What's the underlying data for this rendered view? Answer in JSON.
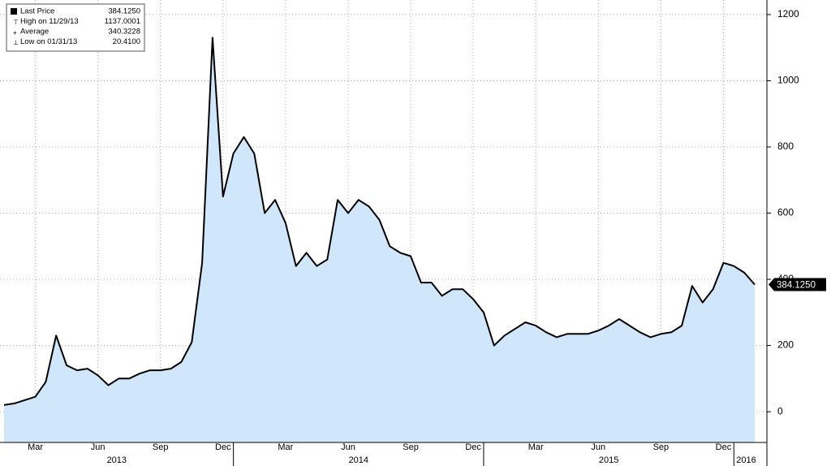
{
  "chart_data": {
    "type": "area",
    "stats": [
      {
        "label": "Last Price",
        "value": "384.1250"
      },
      {
        "label": "High on 11/29/13",
        "value": "1137.0001"
      },
      {
        "label": "Average",
        "value": "340.3228"
      },
      {
        "label": "Low on 01/31/13",
        "value": "20.4100"
      }
    ],
    "categories": [
      null,
      null,
      null,
      "Mar",
      null,
      null,
      null,
      null,
      null,
      "Jun",
      null,
      null,
      null,
      null,
      null,
      "Sep",
      null,
      null,
      null,
      null,
      null,
      "Dec",
      null,
      null,
      null,
      null,
      null,
      "Mar",
      null,
      null,
      null,
      null,
      null,
      "Jun",
      null,
      null,
      null,
      null,
      null,
      "Sep",
      null,
      null,
      null,
      null,
      null,
      "Dec",
      null,
      null,
      null,
      null,
      null,
      "Mar",
      null,
      null,
      null,
      null,
      null,
      "Jun",
      null,
      null,
      null,
      null,
      null,
      "Sep",
      null,
      null,
      null,
      null,
      null,
      "Dec",
      null,
      null,
      null
    ],
    "years": [
      "2013",
      "2014",
      "2015",
      "2016"
    ],
    "series": [
      {
        "name": "Last Price",
        "color": "#000000",
        "fill": "#cfe6fb",
        "values": [
          20,
          25,
          35,
          45,
          90,
          230,
          140,
          125,
          130,
          110,
          80,
          100,
          100,
          115,
          125,
          125,
          130,
          150,
          210,
          450,
          1130,
          650,
          780,
          830,
          780,
          600,
          640,
          570,
          440,
          480,
          440,
          460,
          640,
          600,
          640,
          620,
          580,
          500,
          480,
          470,
          390,
          390,
          350,
          370,
          370,
          340,
          300,
          200,
          230,
          250,
          270,
          260,
          240,
          225,
          235,
          235,
          235,
          245,
          260,
          280,
          260,
          240,
          225,
          235,
          240,
          260,
          380,
          330,
          370,
          450,
          440,
          420,
          384.125
        ]
      }
    ],
    "ylim": [
      -93,
      1244
    ],
    "yticks": [
      0,
      200,
      400,
      600,
      800,
      1000,
      1200
    ],
    "grid": true
  }
}
